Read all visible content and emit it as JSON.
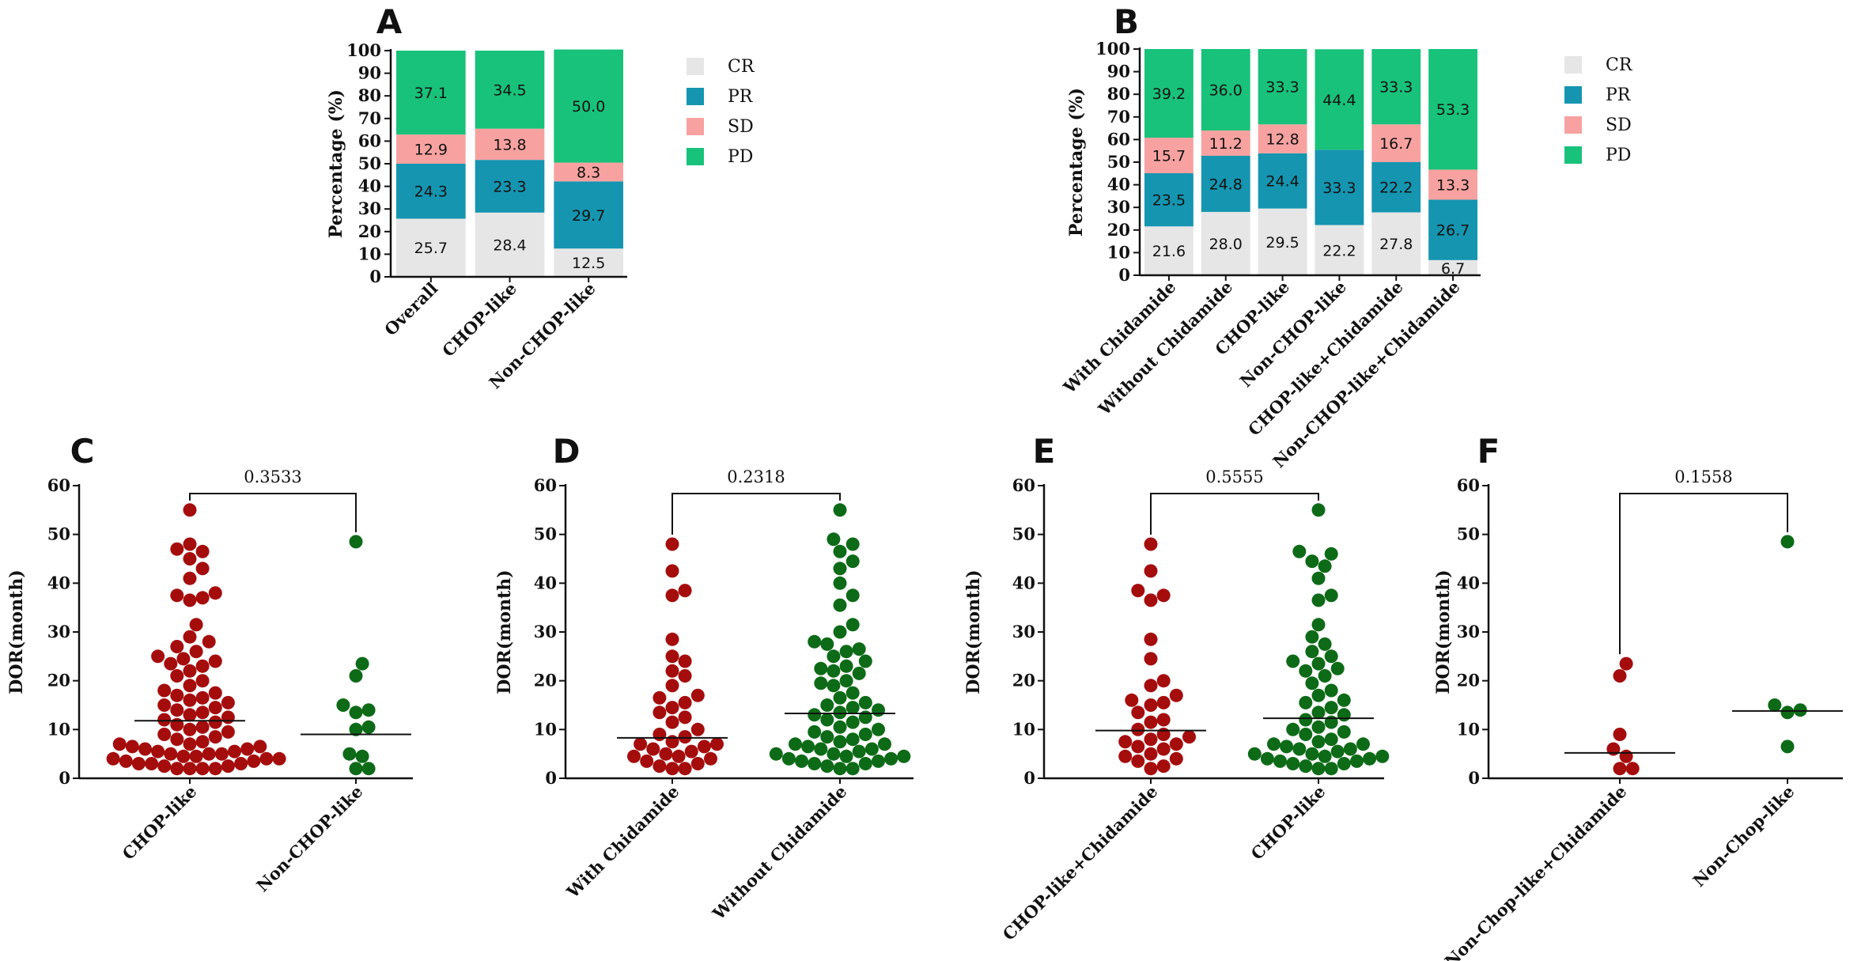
{
  "palette": {
    "CR": "#e6e6e6",
    "PR": "#1595b0",
    "SD": "#f7a2a0",
    "PD": "#18c27a",
    "group1": "#a50d0d",
    "group2": "#0d6b17",
    "axis": "#111111"
  },
  "chart_data": [
    {
      "panel": "A",
      "type": "bar",
      "stacked": true,
      "ylabel": "Percentage (%)",
      "ylim": [
        0,
        100
      ],
      "yticks": [
        0,
        10,
        20,
        30,
        40,
        50,
        60,
        70,
        80,
        90,
        100
      ],
      "categories": [
        "Overall",
        "CHOP-like",
        "Non-CHOP-like"
      ],
      "legend_position": "right",
      "series": [
        {
          "name": "CR",
          "values": [
            25.7,
            28.4,
            12.5
          ],
          "labels": [
            "25.7",
            "28.4",
            "12.5"
          ]
        },
        {
          "name": "PR",
          "values": [
            24.3,
            23.3,
            29.7
          ],
          "labels": [
            "24.3",
            "23.3",
            "29.7"
          ]
        },
        {
          "name": "SD",
          "values": [
            12.9,
            13.8,
            8.3
          ],
          "labels": [
            "12.9",
            "13.8",
            "8.3"
          ]
        },
        {
          "name": "PD",
          "values": [
            37.1,
            34.5,
            50.0
          ],
          "labels": [
            "37.1",
            "34.5",
            "50.0"
          ]
        }
      ]
    },
    {
      "panel": "B",
      "type": "bar",
      "stacked": true,
      "ylabel": "Percentage (%)",
      "ylim": [
        0,
        100
      ],
      "yticks": [
        0,
        10,
        20,
        30,
        40,
        50,
        60,
        70,
        80,
        90,
        100
      ],
      "categories": [
        "With Chidamide",
        "Without Chidamide",
        "CHOP-like",
        "Non-CHOP-like",
        "CHOP-like+Chidamide",
        "Non-CHOP-like+Chidamide"
      ],
      "legend_position": "right",
      "series": [
        {
          "name": "CR",
          "values": [
            21.6,
            28.0,
            29.5,
            22.2,
            27.8,
            6.7
          ],
          "labels": [
            "21.6",
            "28.0",
            "29.5",
            "22.2",
            "27.8",
            "6.7"
          ]
        },
        {
          "name": "PR",
          "values": [
            23.5,
            24.8,
            24.4,
            33.3,
            22.2,
            26.7
          ],
          "labels": [
            "23.5",
            "24.8",
            "24.4",
            "33.3",
            "22.2",
            "26.7"
          ]
        },
        {
          "name": "SD",
          "values": [
            15.7,
            11.2,
            12.8,
            0,
            16.7,
            13.3
          ],
          "labels": [
            "15.7",
            "11.2",
            "12.8",
            "",
            "16.7",
            "13.3"
          ]
        },
        {
          "name": "PD",
          "values": [
            39.2,
            36.0,
            33.3,
            44.4,
            33.3,
            53.3
          ],
          "labels": [
            "39.2",
            "36.0",
            "33.3",
            "44.4",
            "33.3",
            "53.3"
          ]
        }
      ]
    },
    {
      "panel": "C",
      "type": "scatter",
      "ylabel": "DOR(month)",
      "ylim": [
        0,
        60
      ],
      "yticks": [
        0,
        10,
        20,
        30,
        40,
        50,
        60
      ],
      "categories": [
        "CHOP-like",
        "Non-CHOP-like"
      ],
      "p_value": "0.3533",
      "medians": [
        11.8,
        9.0
      ],
      "groups": [
        {
          "name": "CHOP-like",
          "values": [
            55,
            48,
            47,
            46.5,
            45,
            43,
            41,
            38,
            37.5,
            37,
            36.5,
            31.5,
            29,
            28,
            27,
            26,
            25,
            24.5,
            24,
            23.5,
            23,
            22,
            21,
            20,
            19,
            18,
            17.5,
            17,
            16.5,
            16,
            15.5,
            15,
            14.5,
            14,
            13.5,
            13,
            12.5,
            12,
            11.5,
            11,
            10.5,
            10,
            9.5,
            9,
            8.5,
            8,
            7.5,
            7,
            7,
            6.5,
            6.5,
            6,
            6,
            5.5,
            5.5,
            5,
            5,
            5,
            4.5,
            4.5,
            4,
            4,
            4,
            3.5,
            3.5,
            3,
            3,
            3,
            2.5,
            2.5,
            2,
            2,
            2,
            2
          ]
        },
        {
          "name": "Non-CHOP-like",
          "values": [
            48.5,
            23.5,
            21,
            15,
            14,
            13.5,
            10.5,
            10,
            5,
            4.5,
            2,
            2
          ]
        }
      ]
    },
    {
      "panel": "D",
      "type": "scatter",
      "ylabel": "DOR(month)",
      "ylim": [
        0,
        60
      ],
      "yticks": [
        0,
        10,
        20,
        30,
        40,
        50,
        60
      ],
      "categories": [
        "With Chidamide",
        "Without Chidamide"
      ],
      "p_value": "0.2318",
      "medians": [
        8.3,
        13.3
      ],
      "groups": [
        {
          "name": "With Chidamide",
          "values": [
            48,
            42.5,
            38.5,
            37.5,
            28.5,
            25,
            24,
            22,
            21,
            19,
            17,
            16.5,
            15.5,
            14.5,
            13.5,
            12.5,
            11.5,
            10,
            9,
            8.5,
            7.5,
            7,
            7,
            6.5,
            6,
            5.5,
            5,
            4.5,
            4.5,
            4,
            3.5,
            3,
            2.5,
            2,
            2
          ]
        },
        {
          "name": "Without Chidamide",
          "values": [
            55,
            49,
            48,
            46.5,
            44.5,
            43,
            40,
            37.5,
            35.5,
            31.5,
            30,
            28,
            27.5,
            26.5,
            26,
            25,
            24,
            23,
            22.5,
            22,
            21.5,
            20,
            19.5,
            19,
            17.5,
            16.5,
            15.5,
            15,
            14.5,
            14,
            13.5,
            13,
            12.5,
            12,
            11.5,
            10.5,
            10,
            9.5,
            9,
            8.5,
            8,
            7.5,
            7,
            7,
            6.5,
            6,
            6,
            5.5,
            5,
            5,
            4.5,
            4.5,
            4,
            4,
            3.5,
            3.5,
            3,
            3,
            2.5,
            2,
            2
          ]
        }
      ]
    },
    {
      "panel": "E",
      "type": "scatter",
      "ylabel": "DOR(month)",
      "ylim": [
        0,
        60
      ],
      "yticks": [
        0,
        10,
        20,
        30,
        40,
        50,
        60
      ],
      "categories": [
        "CHOP-like+Chidamide",
        "CHOP-like"
      ],
      "p_value": "0.5555",
      "medians": [
        9.8,
        12.3
      ],
      "groups": [
        {
          "name": "CHOP-like+Chidamide",
          "values": [
            48,
            42.5,
            38.5,
            37.5,
            36.5,
            28.5,
            24.5,
            20,
            19,
            17,
            16,
            15.5,
            15,
            13.5,
            12,
            11.5,
            10,
            9,
            8.5,
            8,
            7.5,
            7,
            6.5,
            6,
            5,
            4.5,
            4,
            3.5,
            2.5,
            2
          ]
        },
        {
          "name": "CHOP-like",
          "values": [
            55,
            46.5,
            46,
            44.5,
            43.5,
            41,
            37.5,
            36.5,
            31.5,
            29,
            27.5,
            26,
            25,
            24,
            23.5,
            22.5,
            22,
            21,
            19.5,
            18,
            17,
            16,
            15.5,
            14.5,
            13.5,
            13,
            12,
            11.5,
            10.5,
            10,
            9.5,
            9,
            8,
            7.5,
            7,
            7,
            6.5,
            6,
            6,
            5.5,
            5,
            5,
            4.5,
            4.5,
            4,
            4,
            3.5,
            3.5,
            3,
            3,
            2.5,
            2,
            2
          ]
        }
      ]
    },
    {
      "panel": "F",
      "type": "scatter",
      "ylabel": "DOR(month)",
      "ylim": [
        0,
        60
      ],
      "yticks": [
        0,
        10,
        20,
        30,
        40,
        50,
        60
      ],
      "categories": [
        "Non-Chop-like+Chidamide",
        "Non-Chop-like"
      ],
      "p_value": "0.1558",
      "medians": [
        5.2,
        13.8
      ],
      "groups": [
        {
          "name": "Non-Chop-like+Chidamide",
          "values": [
            23.5,
            21,
            9,
            6,
            4.5,
            2,
            2
          ]
        },
        {
          "name": "Non-Chop-like",
          "values": [
            48.5,
            15,
            14,
            13.5,
            6.5
          ]
        }
      ]
    }
  ]
}
